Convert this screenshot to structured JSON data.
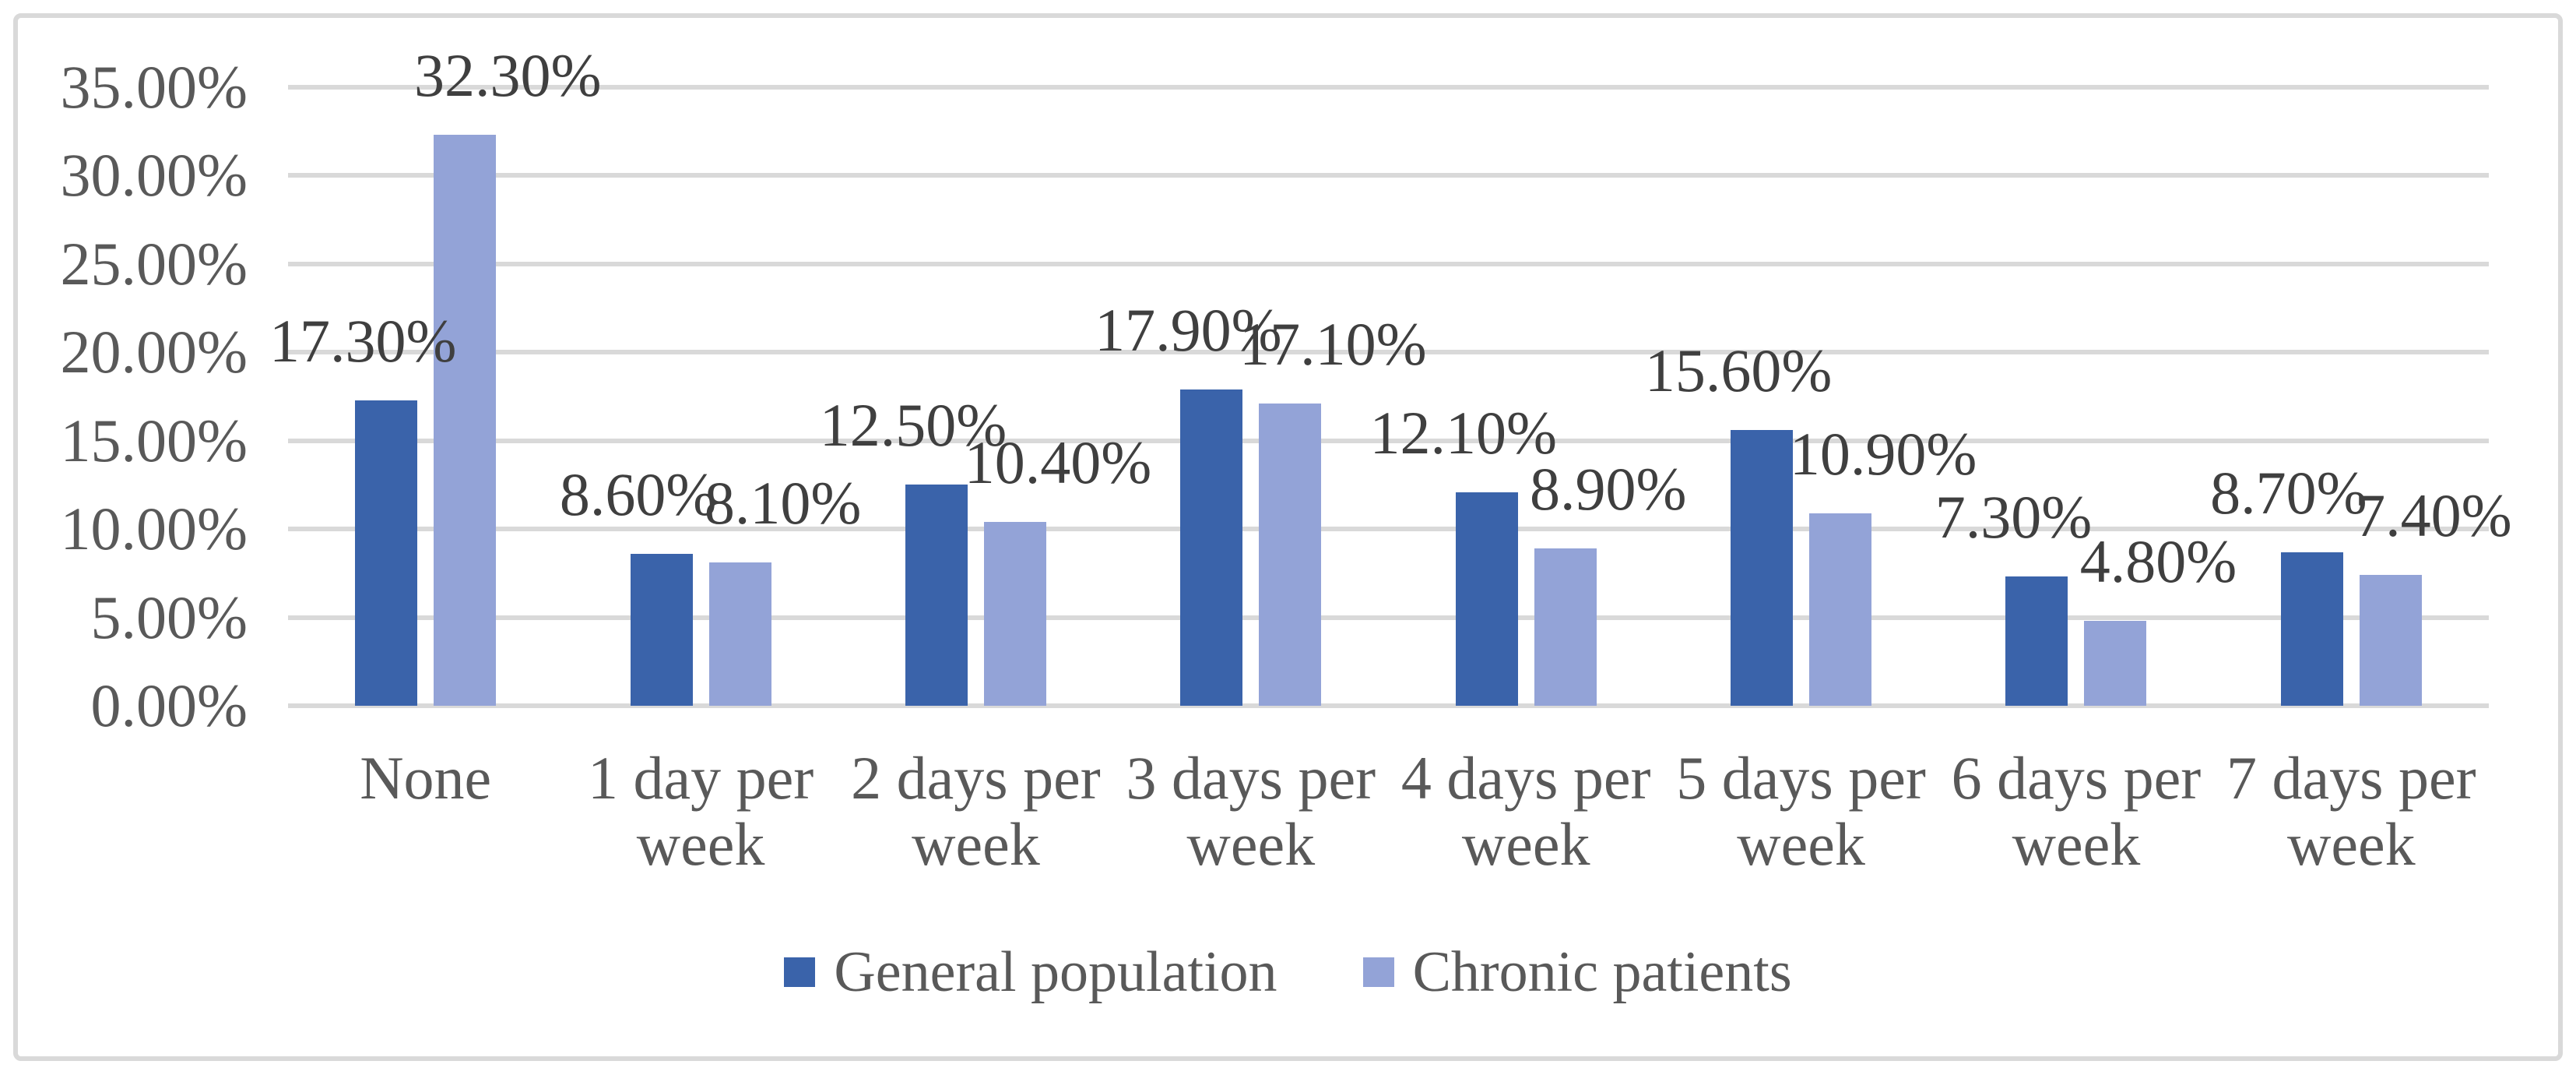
{
  "chart_data": {
    "type": "bar",
    "title": "",
    "xlabel": "",
    "ylabel": "",
    "categories": [
      "None",
      "1 day per week",
      "2 days per week",
      "3 days per week",
      "4 days per week",
      "5 days per week",
      "6 days per week",
      "7 days per week"
    ],
    "category_lines": [
      [
        "None"
      ],
      [
        "1 day per",
        "week"
      ],
      [
        "2 days per",
        "week"
      ],
      [
        "3 days per",
        "week"
      ],
      [
        "4 days per",
        "week"
      ],
      [
        "5 days per",
        "week"
      ],
      [
        "6 days per",
        "week"
      ],
      [
        "7 days per",
        "week"
      ]
    ],
    "series": [
      {
        "name": "General population",
        "color": "#3A63AA",
        "values": [
          17.3,
          8.6,
          12.5,
          17.9,
          12.1,
          15.6,
          7.3,
          8.7
        ]
      },
      {
        "name": "Chronic patients",
        "color": "#93A3D7",
        "values": [
          32.3,
          8.1,
          10.4,
          17.1,
          8.9,
          10.9,
          4.8,
          7.4
        ]
      }
    ],
    "data_labels": {
      "format": "0.00%",
      "general": [
        "17.30%",
        "8.60%",
        "12.50%",
        "17.90%",
        "12.10%",
        "15.60%",
        "7.30%",
        "8.70%"
      ],
      "chronic": [
        "32.30%",
        "8.10%",
        "10.40%",
        "17.10%",
        "8.90%",
        "10.90%",
        "4.80%",
        "7.40%"
      ]
    },
    "y_ticks": [
      "0.00%",
      "5.00%",
      "10.00%",
      "15.00%",
      "20.00%",
      "25.00%",
      "30.00%",
      "35.00%"
    ],
    "ylim": [
      0,
      35
    ],
    "grid": true,
    "legend_position": "bottom",
    "colors": {
      "gridline": "#D9D9D9",
      "border": "#D9D9D9",
      "axis_text": "#595959",
      "data_label_text": "#3F3F3F",
      "background": "#FFFFFF"
    }
  }
}
